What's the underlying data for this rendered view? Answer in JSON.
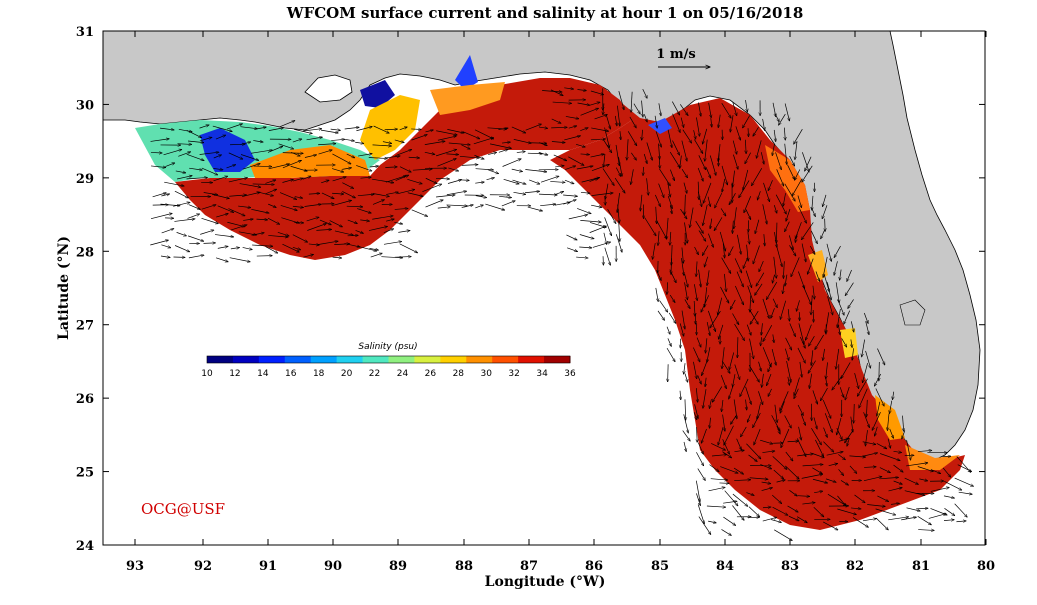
{
  "title": "WFCOM surface current and salinity at hour 1 on 05/16/2018",
  "x_axis": {
    "label": "Longitude (°W)",
    "ticks": [
      "93",
      "92",
      "91",
      "90",
      "89",
      "88",
      "87",
      "86",
      "85",
      "84",
      "83",
      "82",
      "81",
      "80"
    ]
  },
  "y_axis": {
    "label": "Latitude (°N)",
    "ticks": [
      "31",
      "30",
      "29",
      "28",
      "27",
      "26",
      "25",
      "24"
    ]
  },
  "colorbar": {
    "title": "Salinity (psu)",
    "ticks": [
      "10",
      "12",
      "14",
      "16",
      "18",
      "20",
      "22",
      "24",
      "26",
      "28",
      "30",
      "32",
      "34",
      "36"
    ],
    "colors": [
      "#000080",
      "#0000c0",
      "#0020ff",
      "#0060ff",
      "#00a0ff",
      "#20d0f0",
      "#50e8c0",
      "#90f080",
      "#d8f040",
      "#ffd000",
      "#ff9000",
      "#ff5000",
      "#e01000",
      "#a00000"
    ]
  },
  "scale_label": "1 m/s",
  "credit": "OCG@USF",
  "colors": {
    "land": "#c8c8c8",
    "ocean_dominant": "#c41a0a"
  }
}
